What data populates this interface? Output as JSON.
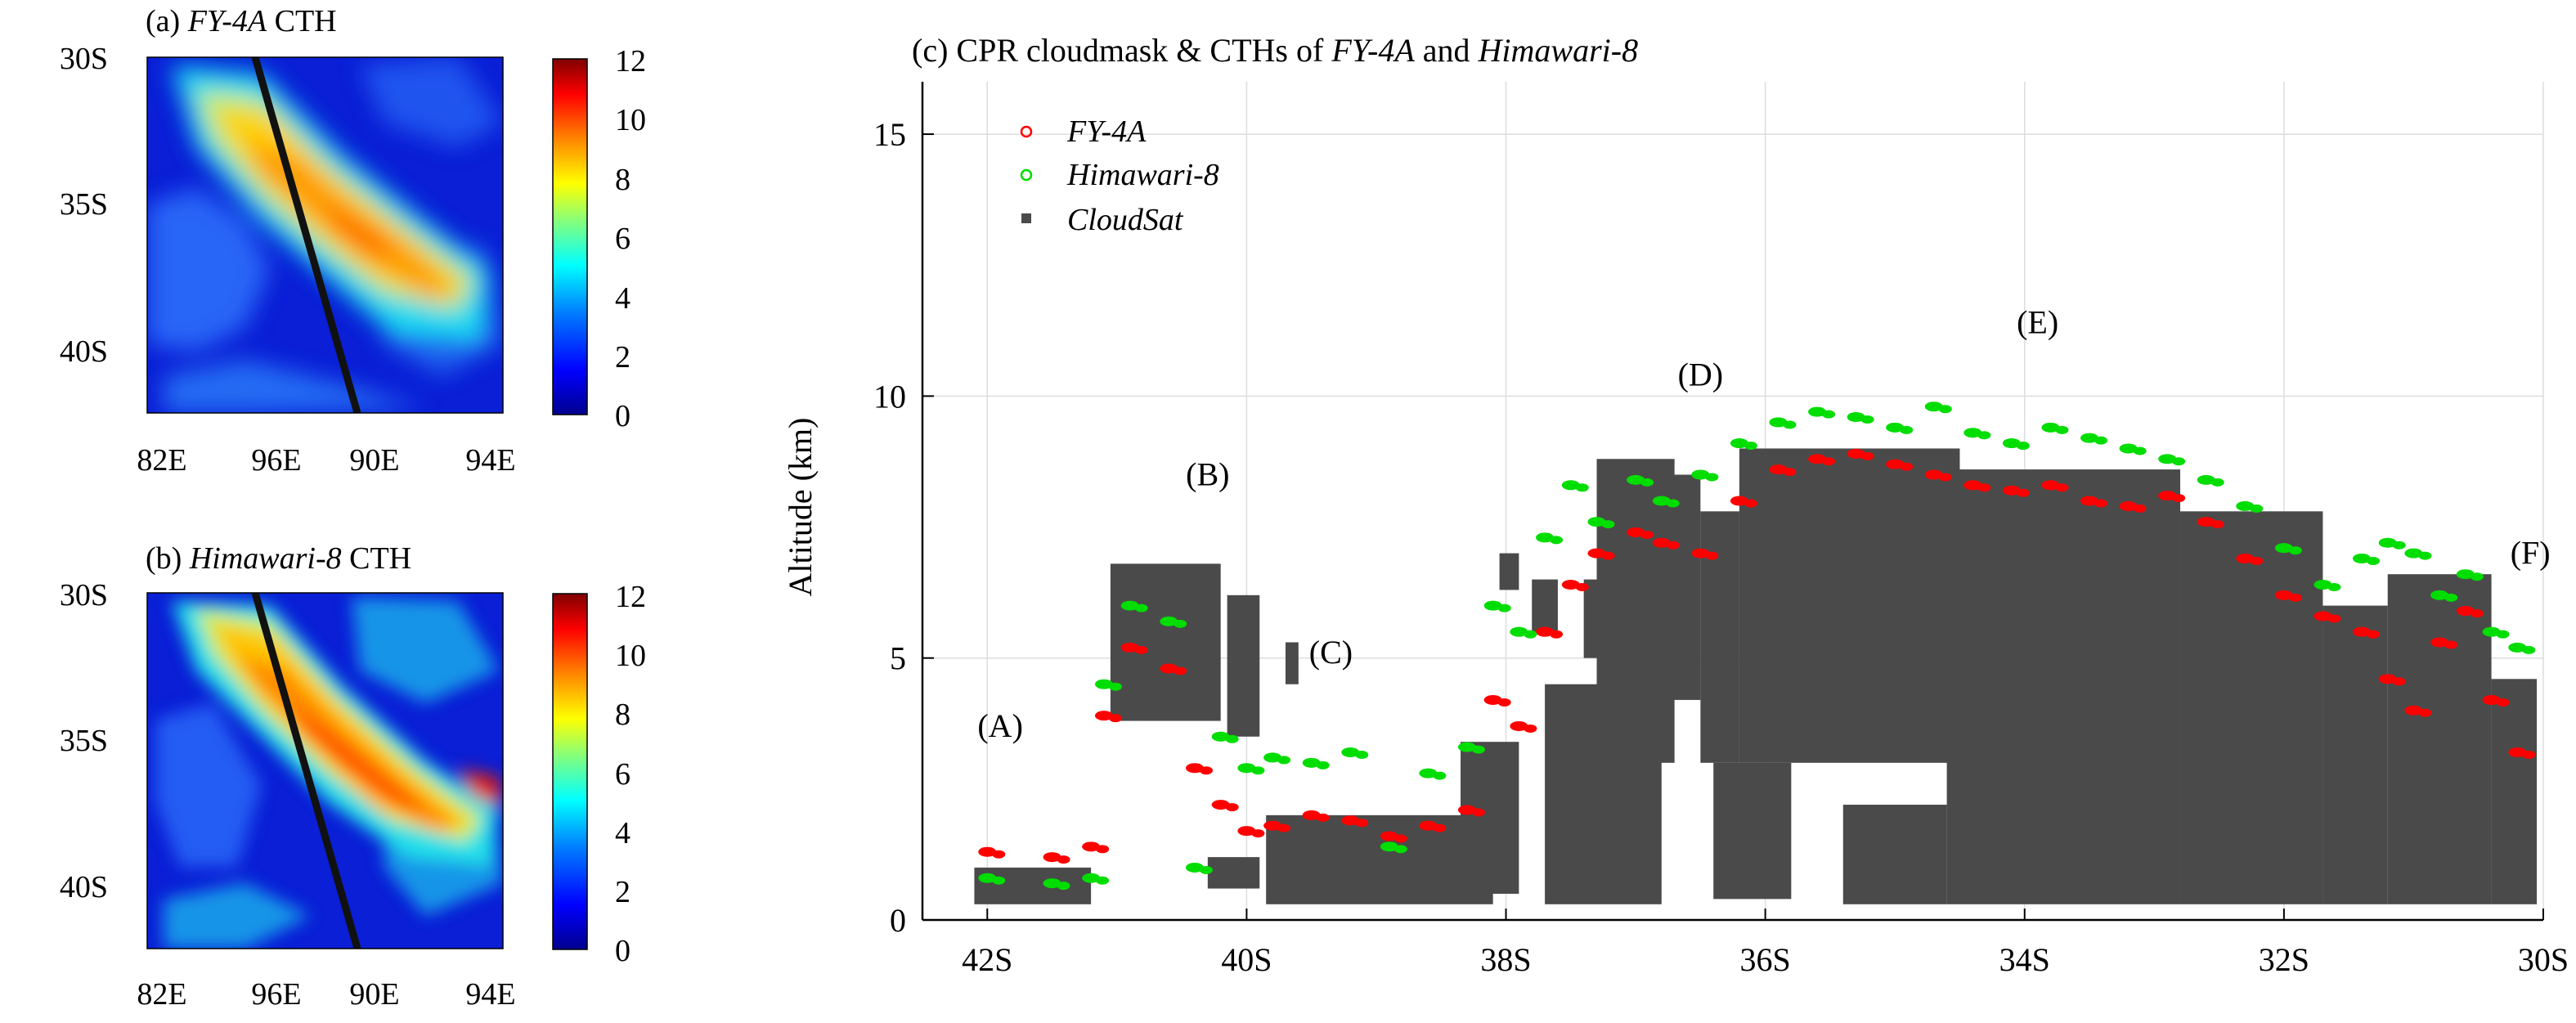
{
  "chart_data": [
    {
      "type": "heatmap",
      "panel": "a",
      "title": {
        "prefix": "(a) ",
        "italic": "FY-4A",
        "suffix": " CTH"
      },
      "y_ticks": [
        "30S",
        "35S",
        "40S"
      ],
      "x_ticks": [
        "82E",
        "96E",
        "90E",
        "94E"
      ],
      "colorbar": {
        "ticks": [
          "12",
          "10",
          "8",
          "6",
          "4",
          "2",
          "0"
        ],
        "range": [
          0,
          12
        ]
      },
      "colorscale": [
        "#00008f",
        "#0000ff",
        "#0080ff",
        "#00ffff",
        "#80ff80",
        "#ffff00",
        "#ff8000",
        "#ff0000",
        "#800000"
      ]
    },
    {
      "type": "heatmap",
      "panel": "b",
      "title": {
        "prefix": "(b) ",
        "italic": "Himawari-8",
        "suffix": " CTH"
      },
      "y_ticks": [
        "30S",
        "35S",
        "40S"
      ],
      "x_ticks": [
        "82E",
        "96E",
        "90E",
        "94E"
      ],
      "colorbar": {
        "ticks": [
          "12",
          "10",
          "8",
          "6",
          "4",
          "2",
          "0"
        ],
        "range": [
          0,
          12
        ]
      },
      "colorscale": [
        "#00008f",
        "#0000ff",
        "#0080ff",
        "#00ffff",
        "#80ff80",
        "#ffff00",
        "#ff8000",
        "#ff0000",
        "#800000"
      ]
    },
    {
      "type": "scatter",
      "panel": "c",
      "title": {
        "prefix": "(c) CPR cloudmask & CTHs of ",
        "italic1": "FY-4A",
        "mid": " and ",
        "italic2": "Himawari-8"
      },
      "ylabel": "Altitude (km)",
      "xlim": [
        -42.5,
        -30
      ],
      "ylim": [
        0,
        16
      ],
      "x_ticks": [
        {
          "v": -42,
          "label": "42S"
        },
        {
          "v": -40,
          "label": "40S"
        },
        {
          "v": -38,
          "label": "38S"
        },
        {
          "v": -36,
          "label": "36S"
        },
        {
          "v": -34,
          "label": "34S"
        },
        {
          "v": -32,
          "label": "32S"
        },
        {
          "v": -30,
          "label": "30S"
        }
      ],
      "y_ticks": [
        {
          "v": 0,
          "label": "0"
        },
        {
          "v": 5,
          "label": "5"
        },
        {
          "v": 10,
          "label": "10"
        },
        {
          "v": 15,
          "label": "15"
        }
      ],
      "grid": true,
      "legend_position": "top-left",
      "series": [
        {
          "name": "FY-4A",
          "color": "#ff0000",
          "marker": "circle",
          "x": [
            -42.0,
            -41.5,
            -41.2,
            -41.1,
            -40.9,
            -40.6,
            -40.4,
            -40.2,
            -40.0,
            -39.8,
            -39.5,
            -39.2,
            -38.9,
            -38.6,
            -38.3,
            -38.1,
            -37.9,
            -37.7,
            -37.5,
            -37.3,
            -37.0,
            -36.8,
            -36.5,
            -36.2,
            -35.9,
            -35.6,
            -35.3,
            -35.0,
            -34.7,
            -34.4,
            -34.1,
            -33.8,
            -33.5,
            -33.2,
            -32.9,
            -32.6,
            -32.3,
            -32.0,
            -31.7,
            -31.4,
            -31.2,
            -31.0,
            -30.8,
            -30.6,
            -30.4,
            -30.2
          ],
          "y": [
            1.3,
            1.2,
            1.4,
            3.9,
            5.2,
            4.8,
            2.9,
            2.2,
            1.7,
            1.8,
            2.0,
            1.9,
            1.6,
            1.8,
            2.1,
            4.2,
            3.7,
            5.5,
            6.4,
            7.0,
            7.4,
            7.2,
            7.0,
            8.0,
            8.6,
            8.8,
            8.9,
            8.7,
            8.5,
            8.3,
            8.2,
            8.3,
            8.0,
            7.9,
            8.1,
            7.6,
            6.9,
            6.2,
            5.8,
            5.5,
            4.6,
            4.0,
            5.3,
            5.9,
            4.2,
            3.2
          ]
        },
        {
          "name": "Himawari-8",
          "color": "#00dd00",
          "marker": "circle",
          "x": [
            -42.0,
            -41.5,
            -41.2,
            -41.1,
            -40.9,
            -40.6,
            -40.4,
            -40.2,
            -40.0,
            -39.8,
            -39.5,
            -39.2,
            -38.9,
            -38.6,
            -38.3,
            -38.1,
            -37.9,
            -37.7,
            -37.5,
            -37.3,
            -37.0,
            -36.8,
            -36.5,
            -36.2,
            -35.9,
            -35.6,
            -35.3,
            -35.0,
            -34.7,
            -34.4,
            -34.1,
            -33.8,
            -33.5,
            -33.2,
            -32.9,
            -32.6,
            -32.3,
            -32.0,
            -31.7,
            -31.4,
            -31.2,
            -31.0,
            -30.8,
            -30.6,
            -30.4,
            -30.2
          ],
          "y": [
            0.8,
            0.7,
            0.8,
            4.5,
            6.0,
            5.7,
            1.0,
            3.5,
            2.9,
            3.1,
            3.0,
            3.2,
            1.4,
            2.8,
            3.3,
            6.0,
            5.5,
            7.3,
            8.3,
            7.6,
            8.4,
            8.0,
            8.5,
            9.1,
            9.5,
            9.7,
            9.6,
            9.4,
            9.8,
            9.3,
            9.1,
            9.4,
            9.2,
            9.0,
            8.8,
            8.4,
            7.9,
            7.1,
            6.4,
            6.9,
            7.2,
            7.0,
            6.2,
            6.6,
            5.5,
            5.2
          ]
        },
        {
          "name": "CloudSat",
          "color": "#4a4a4a",
          "marker": "square",
          "cloud_columns": [
            {
              "x0": -42.1,
              "x1": -41.2,
              "base": 0.3,
              "top": 1.0
            },
            {
              "x0": -41.05,
              "x1": -40.2,
              "base": 3.8,
              "top": 6.8
            },
            {
              "x0": -40.15,
              "x1": -39.9,
              "base": 3.5,
              "top": 6.2
            },
            {
              "x0": -39.7,
              "x1": -39.6,
              "base": 4.5,
              "top": 5.3
            },
            {
              "x0": -40.3,
              "x1": -39.9,
              "base": 0.6,
              "top": 1.2
            },
            {
              "x0": -39.85,
              "x1": -38.1,
              "base": 0.3,
              "top": 2.0
            },
            {
              "x0": -38.35,
              "x1": -37.9,
              "base": 0.5,
              "top": 3.4
            },
            {
              "x0": -38.05,
              "x1": -37.9,
              "base": 6.3,
              "top": 7.0
            },
            {
              "x0": -37.8,
              "x1": -37.6,
              "base": 5.5,
              "top": 6.5
            },
            {
              "x0": -37.4,
              "x1": -37.3,
              "base": 5.0,
              "top": 6.5
            },
            {
              "x0": -37.7,
              "x1": -36.8,
              "base": 0.3,
              "top": 4.5
            },
            {
              "x0": -37.3,
              "x1": -36.7,
              "base": 3.0,
              "top": 8.8
            },
            {
              "x0": -36.8,
              "x1": -36.5,
              "base": 4.2,
              "top": 8.5
            },
            {
              "x0": -36.5,
              "x1": -36.2,
              "base": 3.0,
              "top": 7.8
            },
            {
              "x0": -36.4,
              "x1": -35.8,
              "base": 0.4,
              "top": 3.0
            },
            {
              "x0": -36.2,
              "x1": -34.5,
              "base": 3.0,
              "top": 9.0
            },
            {
              "x0": -35.4,
              "x1": -34.6,
              "base": 0.3,
              "top": 2.2
            },
            {
              "x0": -34.6,
              "x1": -32.8,
              "base": 0.3,
              "top": 8.6
            },
            {
              "x0": -32.8,
              "x1": -31.7,
              "base": 0.3,
              "top": 7.8
            },
            {
              "x0": -31.7,
              "x1": -31.2,
              "base": 0.3,
              "top": 6.0
            },
            {
              "x0": -31.2,
              "x1": -30.4,
              "base": 0.3,
              "top": 6.6
            },
            {
              "x0": -30.4,
              "x1": -30.05,
              "base": 0.3,
              "top": 4.6
            }
          ]
        }
      ],
      "annotations": [
        {
          "label": "(A)",
          "x": -41.9,
          "y": 3.5
        },
        {
          "label": "(B)",
          "x": -40.3,
          "y": 8.3
        },
        {
          "label": "(C)",
          "x": -39.35,
          "y": 4.9
        },
        {
          "label": "(D)",
          "x": -36.5,
          "y": 10.2
        },
        {
          "label": "(E)",
          "x": -33.9,
          "y": 11.2
        },
        {
          "label": "(F)",
          "x": -30.1,
          "y": 6.8
        }
      ]
    }
  ]
}
